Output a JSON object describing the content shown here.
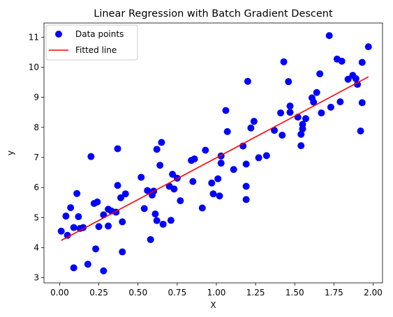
{
  "chart_data": {
    "type": "scatter",
    "title": "Linear Regression with Batch Gradient Descent",
    "xlabel": "X",
    "ylabel": "y",
    "xlim": [
      -0.1,
      2.06
    ],
    "ylim": [
      2.83,
      11.47
    ],
    "xticks": [
      0.0,
      0.25,
      0.5,
      0.75,
      1.0,
      1.25,
      1.5,
      1.75,
      2.0
    ],
    "xtick_labels": [
      "0.00",
      "0.25",
      "0.50",
      "0.75",
      "1.00",
      "1.25",
      "1.50",
      "1.75",
      "2.00"
    ],
    "yticks": [
      3,
      4,
      5,
      6,
      7,
      8,
      9,
      10,
      11
    ],
    "ytick_labels": [
      "3",
      "4",
      "5",
      "6",
      "7",
      "8",
      "9",
      "10",
      "11"
    ],
    "grid": false,
    "legend_position": "top-left",
    "series": [
      {
        "name": "Data points",
        "kind": "scatter",
        "color": "#0000ff",
        "points": [
          [
            0.01,
            4.55
          ],
          [
            0.04,
            5.05
          ],
          [
            0.05,
            4.41
          ],
          [
            0.07,
            5.33
          ],
          [
            0.09,
            4.67
          ],
          [
            0.09,
            3.33
          ],
          [
            0.11,
            5.8
          ],
          [
            0.12,
            5.03
          ],
          [
            0.13,
            4.64
          ],
          [
            0.15,
            4.67
          ],
          [
            0.18,
            3.45
          ],
          [
            0.2,
            7.03
          ],
          [
            0.22,
            5.47
          ],
          [
            0.23,
            3.96
          ],
          [
            0.24,
            5.52
          ],
          [
            0.25,
            4.7
          ],
          [
            0.28,
            5.09
          ],
          [
            0.28,
            3.23
          ],
          [
            0.31,
            5.28
          ],
          [
            0.31,
            4.72
          ],
          [
            0.33,
            5.22
          ],
          [
            0.36,
            5.18
          ],
          [
            0.37,
            7.29
          ],
          [
            0.37,
            6.07
          ],
          [
            0.39,
            5.66
          ],
          [
            0.4,
            4.86
          ],
          [
            0.4,
            3.86
          ],
          [
            0.42,
            5.79
          ],
          [
            0.52,
            6.34
          ],
          [
            0.54,
            5.3
          ],
          [
            0.56,
            5.9
          ],
          [
            0.58,
            4.27
          ],
          [
            0.59,
            5.75
          ],
          [
            0.6,
            5.88
          ],
          [
            0.61,
            5.12
          ],
          [
            0.62,
            4.9
          ],
          [
            0.62,
            7.27
          ],
          [
            0.64,
            6.74
          ],
          [
            0.65,
            7.5
          ],
          [
            0.66,
            4.78
          ],
          [
            0.7,
            6.04
          ],
          [
            0.71,
            4.91
          ],
          [
            0.72,
            6.44
          ],
          [
            0.73,
            5.95
          ],
          [
            0.75,
            6.31
          ],
          [
            0.77,
            5.56
          ],
          [
            0.84,
            6.9
          ],
          [
            0.85,
            6.2
          ],
          [
            0.86,
            6.95
          ],
          [
            0.91,
            5.32
          ],
          [
            0.93,
            7.24
          ],
          [
            0.97,
            6.15
          ],
          [
            0.98,
            5.79
          ],
          [
            1.01,
            6.29
          ],
          [
            1.02,
            5.72
          ],
          [
            1.03,
            7.05
          ],
          [
            1.03,
            6.81
          ],
          [
            1.06,
            8.56
          ],
          [
            1.07,
            7.86
          ],
          [
            1.11,
            6.6
          ],
          [
            1.17,
            7.38
          ],
          [
            1.19,
            6.78
          ],
          [
            1.19,
            5.6
          ],
          [
            1.19,
            6.04
          ],
          [
            1.2,
            9.53
          ],
          [
            1.22,
            7.98
          ],
          [
            1.24,
            8.2
          ],
          [
            1.27,
            6.99
          ],
          [
            1.32,
            7.06
          ],
          [
            1.37,
            7.9
          ],
          [
            1.41,
            8.48
          ],
          [
            1.42,
            7.74
          ],
          [
            1.43,
            10.18
          ],
          [
            1.46,
            9.52
          ],
          [
            1.47,
            8.71
          ],
          [
            1.47,
            8.5
          ],
          [
            1.52,
            8.34
          ],
          [
            1.54,
            7.77
          ],
          [
            1.54,
            7.39
          ],
          [
            1.55,
            7.95
          ],
          [
            1.55,
            8.1
          ],
          [
            1.57,
            8.29
          ],
          [
            1.61,
            8.98
          ],
          [
            1.62,
            8.84
          ],
          [
            1.64,
            9.16
          ],
          [
            1.66,
            9.78
          ],
          [
            1.67,
            8.48
          ],
          [
            1.72,
            11.05
          ],
          [
            1.73,
            8.67
          ],
          [
            1.77,
            10.27
          ],
          [
            1.79,
            8.85
          ],
          [
            1.8,
            10.2
          ],
          [
            1.84,
            9.6
          ],
          [
            1.87,
            9.73
          ],
          [
            1.89,
            9.62
          ],
          [
            1.9,
            9.43
          ],
          [
            1.92,
            7.88
          ],
          [
            1.93,
            10.16
          ],
          [
            1.93,
            8.82
          ],
          [
            1.97,
            10.68
          ]
        ]
      },
      {
        "name": "Fitted line",
        "kind": "line",
        "color": "#ff0000",
        "points": [
          [
            0.01,
            4.24
          ],
          [
            1.97,
            9.68
          ]
        ]
      }
    ]
  }
}
